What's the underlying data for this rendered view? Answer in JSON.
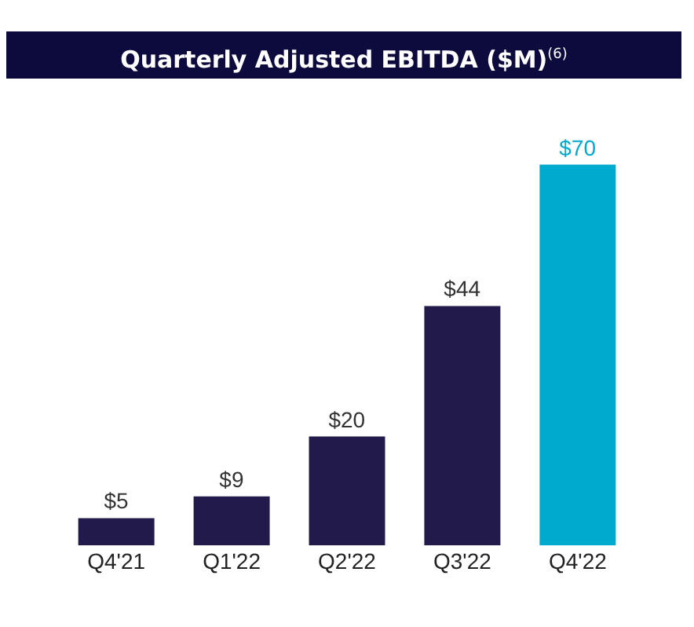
{
  "chart_data": {
    "type": "bar",
    "title": "Quarterly Adjusted EBITDA ($M)$^{(6)}$",
    "categories": [
      "Q4'21",
      "Q1'22",
      "Q2'22",
      "Q3'22",
      "Q4'22"
    ],
    "values": [
      5,
      9,
      20,
      44,
      70
    ],
    "colors": [
      "#221a4a",
      "#221a4a",
      "#221a4a",
      "#221a4a",
      "#00a9ce"
    ],
    "value_labels": [
      "$5",
      "$9",
      "$20",
      "$44",
      "$70"
    ],
    "grid": false,
    "legend": false
  }
}
